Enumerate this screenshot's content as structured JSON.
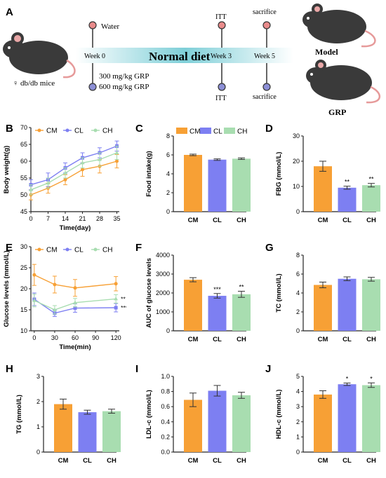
{
  "colors": {
    "CM": "#f7a035",
    "CL": "#7d7ff2",
    "CH": "#a8ddb0",
    "dot_top": "#e98b8b",
    "dot_bottom": "#8c8fd6",
    "mouse": "#3a3a3a"
  },
  "schematic": {
    "panel_label": "A",
    "mice_label": "♀ db/db mice",
    "water_label": "Water",
    "week0_label": "Week 0",
    "diet_label": "Normal diet",
    "week3_label": "Week 3",
    "week5_label": "Week 5",
    "dose_low": "300 mg/kg GRP",
    "dose_high": "600 mg/kg GRP",
    "itt_top": "ITT",
    "itt_bottom": "ITT",
    "sacrifice_top": "sacrifice",
    "sacrifice_bottom": "sacrifice",
    "model_label": "Model",
    "grp_label": "GRP"
  },
  "chart_data": [
    {
      "id": "B",
      "type": "line",
      "panel_label": "B",
      "xlabel": "Time(day)",
      "ylabel": "Body weight(g)",
      "x": [
        0,
        7,
        14,
        21,
        28,
        35
      ],
      "xlim": [
        0,
        36
      ],
      "ylim": [
        45,
        70
      ],
      "xticks": [
        "0",
        "7",
        "14",
        "21",
        "28",
        "35"
      ],
      "yticks": [
        "45",
        "50",
        "55",
        "60",
        "65",
        "70"
      ],
      "legend": [
        "CM",
        "CL",
        "CH"
      ],
      "series": [
        {
          "name": "CM",
          "values": [
            50,
            52,
            54.5,
            57.5,
            58.5,
            60
          ],
          "err": [
            1.5,
            1.5,
            1.5,
            2,
            2,
            2
          ]
        },
        {
          "name": "CL",
          "values": [
            53,
            54.5,
            58,
            61,
            62.5,
            64.5
          ],
          "err": [
            1.5,
            2,
            1.5,
            1.5,
            1.5,
            1.5
          ]
        },
        {
          "name": "CH",
          "values": [
            51.5,
            53.5,
            56.5,
            59.5,
            60.5,
            62.5
          ],
          "err": [
            1.5,
            1.5,
            1.5,
            1.5,
            2,
            2
          ]
        }
      ]
    },
    {
      "id": "C",
      "type": "bar",
      "panel_label": "C",
      "ylabel": "Food intake(g)",
      "ylim": [
        0,
        8
      ],
      "yticks": [
        "0",
        "2",
        "4",
        "6",
        "8"
      ],
      "categories": [
        "CM",
        "CL",
        "CH"
      ],
      "legend": [
        "CM",
        "CL",
        "CH"
      ],
      "values": [
        6.0,
        5.5,
        5.6
      ],
      "err": [
        0.08,
        0.08,
        0.08
      ],
      "sig": [
        "",
        "",
        ""
      ]
    },
    {
      "id": "D",
      "type": "bar",
      "panel_label": "D",
      "ylabel": "FBG (mmol/L)",
      "ylim": [
        0,
        30
      ],
      "yticks": [
        "0",
        "10",
        "20",
        "30"
      ],
      "categories": [
        "CM",
        "CL",
        "CH"
      ],
      "values": [
        18,
        9.5,
        10.5
      ],
      "err": [
        2,
        0.6,
        0.7
      ],
      "sig": [
        "",
        "**",
        "**"
      ]
    },
    {
      "id": "E",
      "type": "line",
      "panel_label": "E",
      "xlabel": "Time(min)",
      "ylabel": "Glucose levels (mmol/L)",
      "x": [
        0,
        30,
        60,
        120
      ],
      "xlim": [
        -5,
        125
      ],
      "ylim": [
        10,
        30
      ],
      "xticks": [
        "0",
        "30",
        "60",
        "90",
        "120"
      ],
      "xtick_values": [
        0,
        30,
        60,
        90,
        120
      ],
      "yticks": [
        "10",
        "15",
        "20",
        "25",
        "30"
      ],
      "legend": [
        "CM",
        "CL",
        "CH"
      ],
      "series": [
        {
          "name": "CM",
          "values": [
            23.3,
            21,
            20.2,
            21.2
          ],
          "err": [
            2.5,
            2,
            2,
            1.7
          ],
          "sig": ""
        },
        {
          "name": "CL",
          "values": [
            17.5,
            14.2,
            15.4,
            15.5
          ],
          "err": [
            1.5,
            0.8,
            1,
            1
          ],
          "sig": "***"
        },
        {
          "name": "CH",
          "values": [
            17.2,
            15,
            16.7,
            17.6
          ],
          "err": [
            1.5,
            1,
            1,
            1
          ],
          "sig": "**"
        }
      ]
    },
    {
      "id": "F",
      "type": "bar",
      "panel_label": "F",
      "ylabel": "AUC of glucose levels",
      "ylim": [
        0,
        4000
      ],
      "yticks": [
        "0",
        "1000",
        "2000",
        "3000",
        "4000"
      ],
      "categories": [
        "CM",
        "CL",
        "CH"
      ],
      "values": [
        2700,
        1850,
        1930
      ],
      "err": [
        110,
        120,
        160
      ],
      "sig": [
        "",
        "***",
        "**"
      ]
    },
    {
      "id": "G",
      "type": "bar",
      "panel_label": "G",
      "ylabel": "TC (mmol/L)",
      "ylim": [
        0,
        8
      ],
      "yticks": [
        "0",
        "2",
        "4",
        "6",
        "8"
      ],
      "categories": [
        "CM",
        "CL",
        "CH"
      ],
      "values": [
        4.85,
        5.5,
        5.45
      ],
      "err": [
        0.3,
        0.2,
        0.2
      ],
      "sig": [
        "",
        "",
        ""
      ]
    },
    {
      "id": "H",
      "type": "bar",
      "panel_label": "H",
      "ylabel": "TG (mmol/L)",
      "ylim": [
        0,
        3
      ],
      "yticks": [
        "0",
        "1",
        "2",
        "3"
      ],
      "categories": [
        "CM",
        "CL",
        "CH"
      ],
      "values": [
        1.9,
        1.58,
        1.62
      ],
      "err": [
        0.2,
        0.08,
        0.08
      ],
      "sig": [
        "",
        "",
        ""
      ]
    },
    {
      "id": "I",
      "type": "bar",
      "panel_label": "I",
      "ylabel": "LDL-c (mmol/L)",
      "ylim": [
        0,
        1.0
      ],
      "yticks": [
        "0.0",
        "0.2",
        "0.4",
        "0.6",
        "0.8",
        "1.0"
      ],
      "categories": [
        "CM",
        "CL",
        "CH"
      ],
      "values": [
        0.69,
        0.81,
        0.75
      ],
      "err": [
        0.09,
        0.07,
        0.04
      ],
      "sig": [
        "",
        "",
        ""
      ]
    },
    {
      "id": "J",
      "type": "bar",
      "panel_label": "J",
      "ylabel": "HDL-c (mmol/L)",
      "ylim": [
        0,
        5
      ],
      "yticks": [
        "0",
        "1",
        "2",
        "3",
        "4",
        "5"
      ],
      "categories": [
        "CM",
        "CL",
        "CH"
      ],
      "values": [
        3.8,
        4.48,
        4.42
      ],
      "err": [
        0.25,
        0.08,
        0.15
      ],
      "sig": [
        "",
        "*",
        "*"
      ]
    }
  ]
}
